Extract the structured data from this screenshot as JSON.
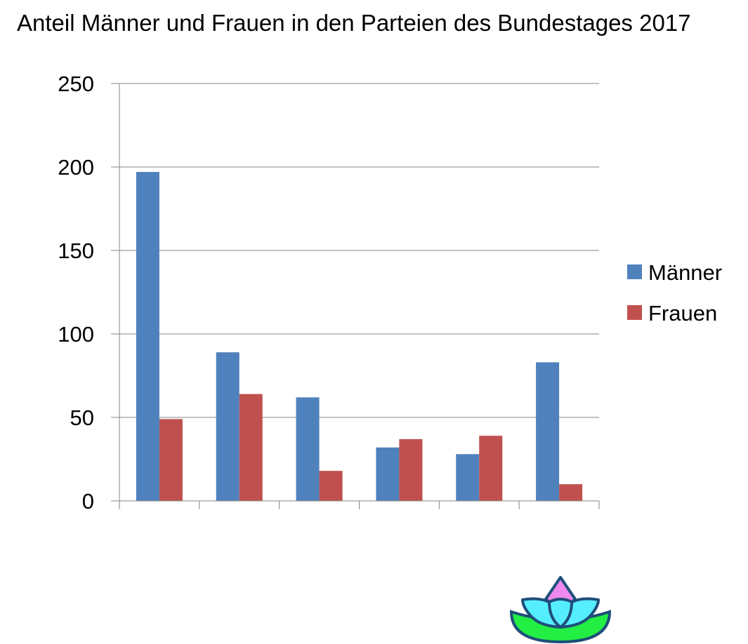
{
  "chart_data": {
    "type": "bar",
    "title": "Anteil Männer und Frauen in den Parteien des Bundestages 2017",
    "xlabel": "",
    "ylabel": "",
    "ylim": [
      0,
      250
    ],
    "yticks": [
      0,
      50,
      100,
      150,
      200,
      250
    ],
    "categories": [
      "",
      "",
      "",
      "",
      "",
      ""
    ],
    "series": [
      {
        "name": "Männer",
        "color": "#4f81bd",
        "values": [
          197,
          89,
          62,
          32,
          28,
          83
        ]
      },
      {
        "name": "Frauen",
        "color": "#c0504d",
        "values": [
          49,
          64,
          18,
          37,
          39,
          10
        ]
      }
    ],
    "grid": true,
    "legend_position": "right"
  },
  "logo": {
    "icon": "lotus-flower-icon",
    "colors": [
      "#ee88ee",
      "#55eeff",
      "#22ee44",
      "#1f4e79"
    ]
  }
}
